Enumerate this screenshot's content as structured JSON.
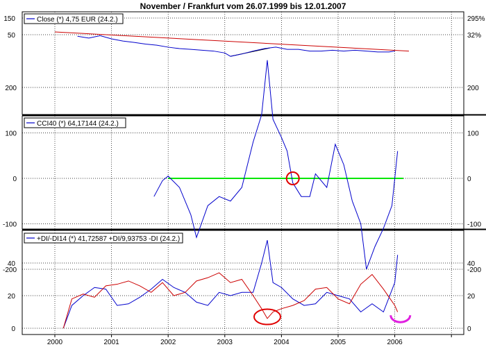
{
  "title": "November / Frankfurt vom 26.07.1999 bis 12.01.2007",
  "x_axis": {
    "ticks": [
      "2000",
      "2001",
      "2002",
      "2003",
      "2004",
      "2005",
      "2006"
    ]
  },
  "colors": {
    "price": "#0000cc",
    "trendline": "#cc0000",
    "zero_line": "#00e600",
    "marker_circle": "#e00000",
    "marker_arc": "#e020e0",
    "plus_di": "#0000cc",
    "minus_di": "#cc0000"
  },
  "chart_data": [
    {
      "type": "line",
      "panel": "price",
      "legend": "Close (*) 4,75 EUR (24.2.)",
      "scale": "log",
      "yticks_left": [
        "150",
        "50"
      ],
      "yticks_right": [
        "295%",
        "32%"
      ],
      "x": [
        2000.4,
        2000.6,
        2000.8,
        2001.0,
        2001.2,
        2001.4,
        2001.6,
        2001.8,
        2002.0,
        2002.2,
        2002.4,
        2002.6,
        2002.8,
        2003.0,
        2003.1,
        2003.3,
        2003.5,
        2003.7,
        2003.9,
        2004.1,
        2004.3,
        2004.5,
        2004.7,
        2004.9,
        2005.1,
        2005.3,
        2005.5,
        2005.7,
        2005.9,
        2006.0
      ],
      "series": [
        {
          "values": [
            45,
            40,
            47,
            38,
            33,
            30,
            27,
            25,
            22,
            20,
            19,
            18,
            17,
            15,
            12,
            14,
            17,
            20,
            22,
            19,
            19,
            17,
            17,
            18,
            17,
            18,
            17,
            16,
            16,
            17
          ]
        }
      ],
      "overlays": [
        {
          "label": "",
          "from": [
            2000.0,
            60
          ],
          "to": [
            2006.25,
            17
          ]
        },
        {
          "label": "",
          "from": [
            2003.1,
            12
          ],
          "to": [
            2003.8,
            21
          ]
        }
      ]
    },
    {
      "type": "line",
      "panel": "cci",
      "legend": "CCI40 (*) 64,17144 (24.2.)",
      "yticks": [
        "200",
        "100",
        "0",
        "-100",
        "-200"
      ],
      "ylim": [
        -210,
        260
      ],
      "x": [
        2001.75,
        2001.9,
        2002.0,
        2002.2,
        2002.4,
        2002.5,
        2002.7,
        2002.9,
        2003.1,
        2003.3,
        2003.5,
        2003.65,
        2003.75,
        2003.85,
        2004.0,
        2004.1,
        2004.2,
        2004.35,
        2004.5,
        2004.6,
        2004.8,
        2004.95,
        2005.1,
        2005.25,
        2005.4,
        2005.5,
        2005.65,
        2005.8,
        2005.95,
        2006.05
      ],
      "series": [
        {
          "values": [
            -40,
            -5,
            5,
            -20,
            -80,
            -130,
            -60,
            -40,
            -50,
            -20,
            80,
            140,
            260,
            130,
            90,
            60,
            -10,
            -40,
            -40,
            10,
            -20,
            75,
            30,
            -50,
            -100,
            -200,
            -150,
            -110,
            -60,
            60
          ]
        }
      ],
      "overlays": [
        {
          "label": "",
          "value": 0,
          "from": 2002.0,
          "to": 2006.15
        }
      ]
    },
    {
      "type": "line",
      "panel": "dmi",
      "legend": "+DI/-DI14 (*) 41,72587 +DI/9,93753 -DI (24.2.)",
      "yticks": [
        "40",
        "20",
        "0"
      ],
      "ylim": [
        0,
        55
      ],
      "x": [
        2000.15,
        2000.3,
        2000.5,
        2000.7,
        2000.9,
        2001.1,
        2001.3,
        2001.5,
        2001.7,
        2001.9,
        2002.1,
        2002.3,
        2002.5,
        2002.7,
        2002.9,
        2003.1,
        2003.3,
        2003.5,
        2003.65,
        2003.75,
        2003.85,
        2004.0,
        2004.2,
        2004.4,
        2004.6,
        2004.8,
        2005.0,
        2005.2,
        2005.4,
        2005.6,
        2005.8,
        2006.0,
        2006.05
      ],
      "series": [
        {
          "name": "+DI",
          "values": [
            0,
            14,
            20,
            25,
            24,
            14,
            15,
            19,
            24,
            30,
            25,
            22,
            16,
            14,
            22,
            20,
            22,
            22,
            40,
            54,
            28,
            25,
            18,
            14,
            15,
            22,
            20,
            18,
            10,
            15,
            10,
            28,
            45
          ]
        },
        {
          "name": "-DI",
          "values": [
            0,
            18,
            21,
            19,
            26,
            27,
            29,
            26,
            22,
            28,
            20,
            22,
            29,
            31,
            34,
            28,
            30,
            20,
            12,
            6,
            10,
            12,
            14,
            17,
            24,
            25,
            18,
            15,
            27,
            33,
            24,
            14,
            10
          ]
        }
      ]
    }
  ]
}
